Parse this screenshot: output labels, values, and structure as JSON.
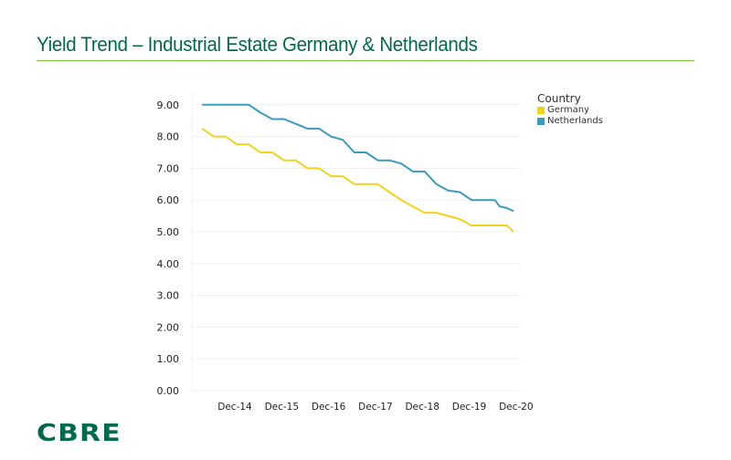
{
  "header": {
    "title": "Yield Trend – Industrial Estate Germany & Netherlands"
  },
  "logo": {
    "text": "CBRE"
  },
  "chart_data": {
    "type": "line",
    "title": "",
    "xlabel": "",
    "ylabel": "",
    "ylim": [
      0,
      9.5
    ],
    "yticks": [
      "0.00",
      "1.00",
      "2.00",
      "3.00",
      "4.00",
      "5.00",
      "6.00",
      "7.00",
      "8.00",
      "9.00"
    ],
    "xticks": [
      "Dec-14",
      "Dec-15",
      "Dec-16",
      "Dec-17",
      "Dec-18",
      "Dec-19",
      "Dec-20"
    ],
    "xrange_years": [
      2013.5,
      2021.4
    ],
    "legend": {
      "title": "Country",
      "placement": "top-right"
    },
    "series": [
      {
        "name": "Germany",
        "color": "#f2d31b",
        "x": [
          2014.25,
          2014.5,
          2014.75,
          2015.0,
          2015.25,
          2015.5,
          2015.75,
          2016.0,
          2016.25,
          2016.5,
          2016.75,
          2017.0,
          2017.25,
          2017.5,
          2017.75,
          2018.0,
          2018.25,
          2018.5,
          2018.75,
          2019.0,
          2019.25,
          2019.5,
          2019.75,
          2020.0,
          2020.25,
          2020.5,
          2020.75,
          2020.9
        ],
        "y": [
          8.25,
          8.0,
          8.0,
          7.75,
          7.75,
          7.5,
          7.5,
          7.25,
          7.25,
          7.0,
          7.0,
          6.75,
          6.75,
          6.5,
          6.5,
          6.5,
          6.25,
          6.0,
          5.8,
          5.6,
          5.6,
          5.5,
          5.4,
          5.2,
          5.2,
          5.2,
          5.2,
          5.0
        ]
      },
      {
        "name": "Netherlands",
        "color": "#3a9bbf",
        "x": [
          2014.25,
          2014.5,
          2014.75,
          2015.0,
          2015.25,
          2015.5,
          2015.75,
          2016.0,
          2016.25,
          2016.5,
          2016.75,
          2017.0,
          2017.25,
          2017.5,
          2017.75,
          2018.0,
          2018.25,
          2018.5,
          2018.75,
          2019.0,
          2019.25,
          2019.5,
          2019.75,
          2020.0,
          2020.25,
          2020.5,
          2020.6,
          2020.75,
          2020.9
        ],
        "y": [
          9.0,
          9.0,
          9.0,
          9.0,
          9.0,
          8.75,
          8.55,
          8.55,
          8.4,
          8.25,
          8.25,
          8.0,
          7.9,
          7.5,
          7.5,
          7.25,
          7.25,
          7.15,
          6.9,
          6.9,
          6.5,
          6.3,
          6.25,
          6.0,
          6.0,
          6.0,
          5.8,
          5.75,
          5.65
        ]
      }
    ]
  }
}
